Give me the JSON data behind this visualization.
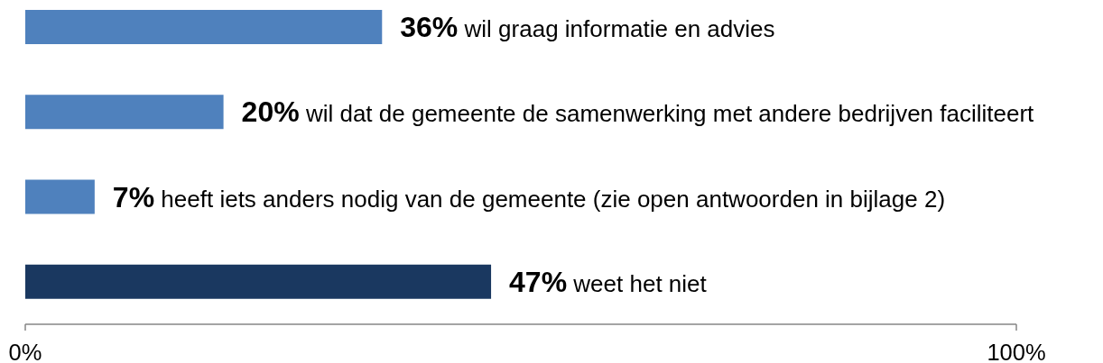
{
  "chart_data": {
    "type": "bar",
    "orientation": "horizontal",
    "categories": [
      "wil graag informatie en advies",
      "wil dat de gemeente de samenwerking met andere bedrijven faciliteert",
      "heeft iets anders nodig van de gemeente (zie open antwoorden in bijlage 2)",
      "weet het niet"
    ],
    "values": [
      36,
      20,
      7,
      47
    ],
    "colors": [
      "#4f81bd",
      "#4f81bd",
      "#4f81bd",
      "#1a3860"
    ],
    "value_labels": [
      "36%",
      "20%",
      "7%",
      "47%"
    ],
    "xlim": [
      0,
      100
    ],
    "xticks": [
      {
        "value": 0,
        "label": "0%"
      },
      {
        "value": 100,
        "label": "100%"
      }
    ]
  }
}
